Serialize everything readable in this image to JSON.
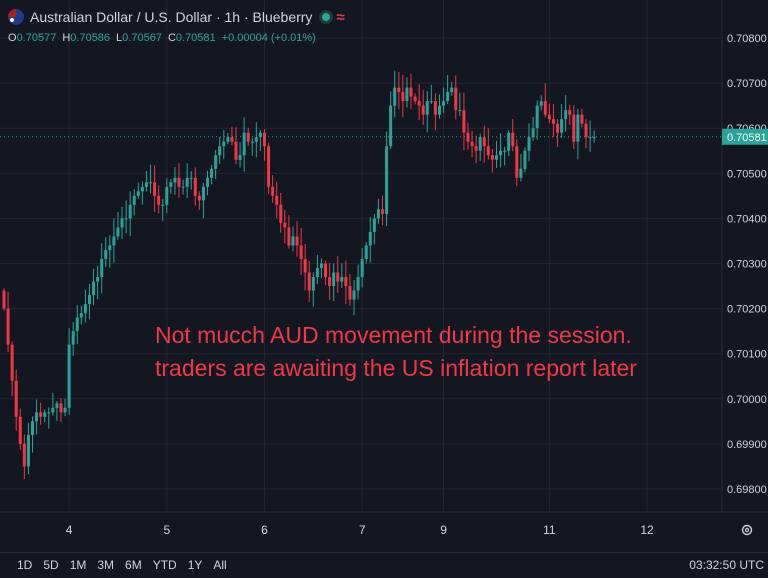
{
  "header": {
    "title": "Australian Dollar / U.S. Dollar · 1h · Blueberry",
    "ohlc": {
      "o_label": "O",
      "o": "0.70577",
      "h_label": "H",
      "h": "0.70586",
      "l_label": "L",
      "l": "0.70567",
      "c_label": "C",
      "c": "0.70581",
      "change": "+0.00004 (+0.01%)"
    }
  },
  "annotation": {
    "line1": "Not mucch AUD movement during the session.",
    "line2": "traders are awaiting the US inflation report later"
  },
  "bottom": {
    "ranges": [
      "1D",
      "5D",
      "1M",
      "3M",
      "6M",
      "YTD",
      "1Y",
      "All"
    ],
    "time": "03:32:50 UTC"
  },
  "colors": {
    "up": "#26a69a",
    "down": "#f23645",
    "background": "#131722",
    "grid": "#232632",
    "last_price": "#26a69a"
  },
  "chart_data": {
    "type": "candlestick",
    "y_ticks": [
      "0.70800",
      "0.70700",
      "0.70600",
      "0.70500",
      "0.70400",
      "0.70300",
      "0.70200",
      "0.70100",
      "0.70000",
      "0.69900",
      "0.69800"
    ],
    "ylim": [
      0.6975,
      0.7085
    ],
    "x_ticks": [
      {
        "label": "4",
        "index": 16
      },
      {
        "label": "5",
        "index": 40
      },
      {
        "label": "6",
        "index": 64
      },
      {
        "label": "7",
        "index": 88
      },
      {
        "label": "9",
        "index": 108
      },
      {
        "label": "11",
        "index": 134
      },
      {
        "label": "12",
        "index": 158
      }
    ],
    "last_price": "0.70581",
    "grid": true,
    "candles_close": [
      0.702,
      0.7012,
      0.7004,
      0.6996,
      0.699,
      0.6985,
      0.6992,
      0.6995,
      0.6997,
      0.6996,
      0.6997,
      0.6997,
      0.6998,
      0.6999,
      0.6997,
      0.6998,
      0.7012,
      0.7015,
      0.7018,
      0.7019,
      0.7021,
      0.7023,
      0.7026,
      0.7027,
      0.7031,
      0.7033,
      0.7034,
      0.7036,
      0.7038,
      0.704,
      0.704,
      0.7043,
      0.7045,
      0.7046,
      0.7047,
      0.7048,
      0.7048,
      0.7045,
      0.7043,
      0.7043,
      0.7047,
      0.7048,
      0.7049,
      0.7047,
      0.7047,
      0.7049,
      0.7049,
      0.7045,
      0.7044,
      0.7047,
      0.7049,
      0.7051,
      0.7054,
      0.7056,
      0.7057,
      0.7058,
      0.7057,
      0.7053,
      0.7054,
      0.7059,
      0.7057,
      0.7057,
      0.7058,
      0.7059,
      0.7056,
      0.7047,
      0.7045,
      0.7043,
      0.7039,
      0.7038,
      0.7034,
      0.7036,
      0.7034,
      0.7031,
      0.7028,
      0.7024,
      0.7027,
      0.7029,
      0.703,
      0.7027,
      0.7025,
      0.7028,
      0.7026,
      0.7027,
      0.7025,
      0.7022,
      0.7024,
      0.7027,
      0.7031,
      0.7034,
      0.7037,
      0.704,
      0.7042,
      0.7041,
      0.7056,
      0.7065,
      0.7069,
      0.7068,
      0.7066,
      0.7069,
      0.7067,
      0.7066,
      0.7065,
      0.7063,
      0.7066,
      0.7066,
      0.7063,
      0.7065,
      0.7066,
      0.7068,
      0.7069,
      0.7064,
      0.7064,
      0.7059,
      0.7057,
      0.7056,
      0.7055,
      0.7058,
      0.7056,
      0.7054,
      0.7053,
      0.7054,
      0.7055,
      0.7055,
      0.7059,
      0.7056,
      0.7049,
      0.7051,
      0.7055,
      0.7058,
      0.706,
      0.7065,
      0.7066,
      0.7063,
      0.7062,
      0.7061,
      0.7059,
      0.7062,
      0.7064,
      0.7063,
      0.7057,
      0.7063,
      0.7061,
      0.7058,
      0.7058,
      0.7058
    ]
  }
}
